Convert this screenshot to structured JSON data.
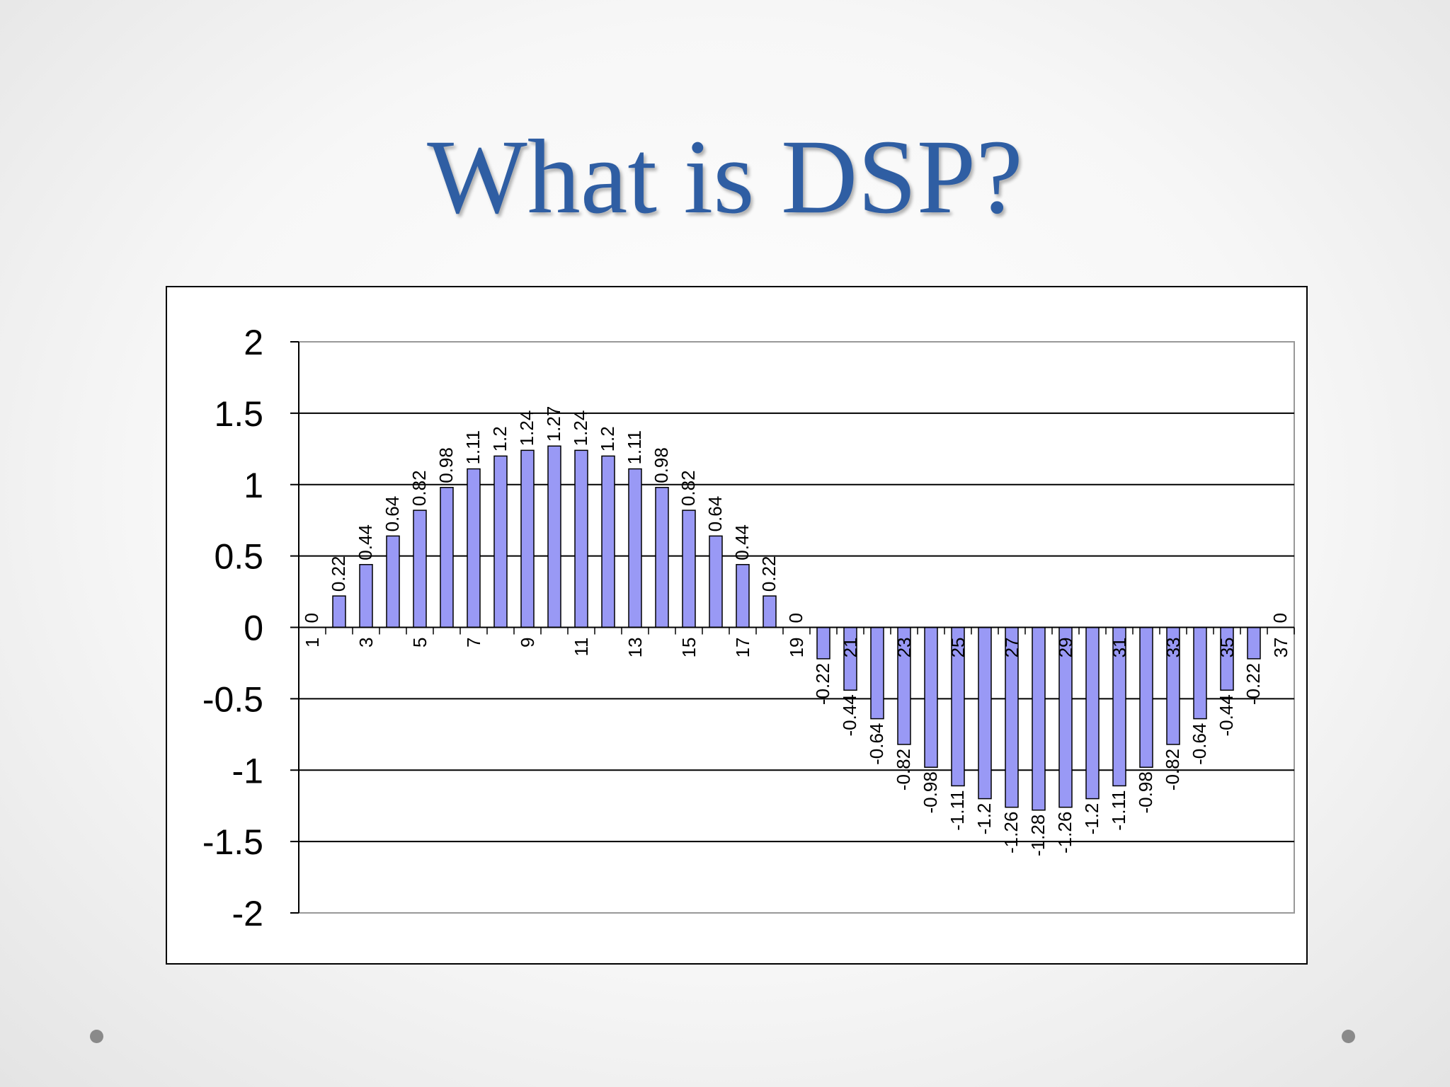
{
  "slide": {
    "title": "What is DSP?"
  },
  "chart_data": {
    "type": "bar",
    "x": [
      1,
      2,
      3,
      4,
      5,
      6,
      7,
      8,
      9,
      10,
      11,
      12,
      13,
      14,
      15,
      16,
      17,
      18,
      19,
      20,
      21,
      22,
      23,
      24,
      25,
      26,
      27,
      28,
      29,
      30,
      31,
      32,
      33,
      34,
      35,
      36,
      37
    ],
    "x_tick_labels": [
      "1",
      "3",
      "5",
      "7",
      "9",
      "11",
      "13",
      "15",
      "17",
      "19",
      "21",
      "23",
      "25",
      "27",
      "29",
      "31",
      "33",
      "35",
      "37"
    ],
    "values": [
      0,
      0.22,
      0.44,
      0.64,
      0.82,
      0.98,
      1.11,
      1.2,
      1.24,
      1.27,
      1.24,
      1.2,
      1.11,
      0.98,
      0.82,
      0.64,
      0.44,
      0.22,
      0,
      -0.22,
      -0.44,
      -0.64,
      -0.82,
      -0.98,
      -1.11,
      -1.2,
      -1.26,
      -1.28,
      -1.26,
      -1.2,
      -1.11,
      -0.98,
      -0.82,
      -0.64,
      -0.44,
      -0.22,
      0
    ],
    "data_labels": [
      "0",
      "0.22",
      "0.44",
      "0.64",
      "0.82",
      "0.98",
      "1.11",
      "1.2",
      "1.24",
      "1.27",
      "1.24",
      "1.2",
      "1.11",
      "0.98",
      "0.82",
      "0.64",
      "0.44",
      "0.22",
      "0",
      "-0.22",
      "-0.44",
      "-0.64",
      "-0.82",
      "-0.98",
      "-1.11",
      "-1.2",
      "-1.26",
      "-1.28",
      "-1.26",
      "-1.2",
      "-1.11",
      "-0.98",
      "-0.82",
      "-0.64",
      "-0.44",
      "-0.22",
      "0"
    ],
    "y_tick_labels": [
      "2",
      "1.5",
      "1",
      "0.5",
      "0",
      "-0.5",
      "-1",
      "-1.5",
      "-2"
    ],
    "y_ticks": [
      2,
      1.5,
      1,
      0.5,
      0,
      -0.5,
      -1,
      -1.5,
      -2
    ],
    "ylim": [
      -2,
      2
    ],
    "grid": true,
    "legend": "none",
    "colors": {
      "bar_fill": "#9999f5",
      "bar_stroke": "#000000",
      "gridline": "#000000",
      "plot_border": "#999999"
    }
  }
}
